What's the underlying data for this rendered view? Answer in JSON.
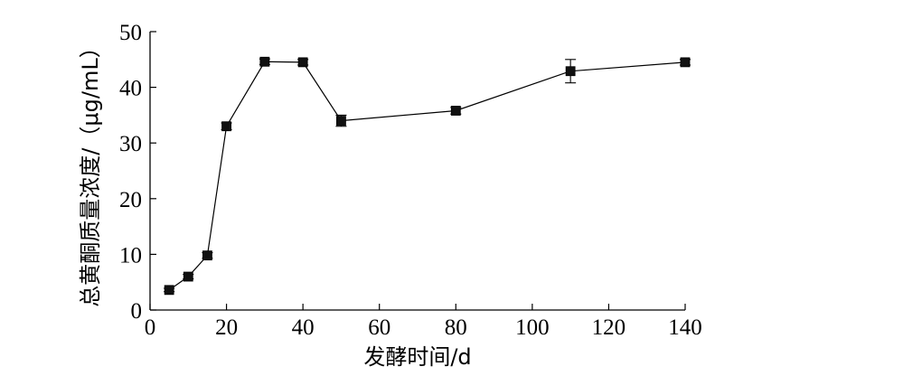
{
  "chart_data": {
    "type": "line",
    "xlabel": "发酵时间/d",
    "ylabel": "总黄酮质量浓度/（μg/mL）",
    "xlim": [
      0,
      140
    ],
    "ylim": [
      0,
      50
    ],
    "x_ticks": [
      "0",
      "20",
      "40",
      "60",
      "80",
      "100",
      "120",
      "140"
    ],
    "y_ticks": [
      "0",
      "10",
      "20",
      "30",
      "40",
      "50"
    ],
    "grid": false,
    "legend": "none",
    "series": [
      {
        "marker": "square",
        "color": "#000000",
        "x": [
          5,
          10,
          15,
          20,
          30,
          40,
          50,
          80,
          110,
          140
        ],
        "y": [
          3.6,
          6.0,
          9.8,
          33.0,
          44.6,
          44.5,
          34.0,
          35.8,
          42.9,
          44.5
        ],
        "error": [
          0.3,
          0.4,
          0.5,
          0.6,
          0.5,
          0.5,
          1.0,
          0.6,
          2.1,
          0.5
        ]
      }
    ]
  }
}
